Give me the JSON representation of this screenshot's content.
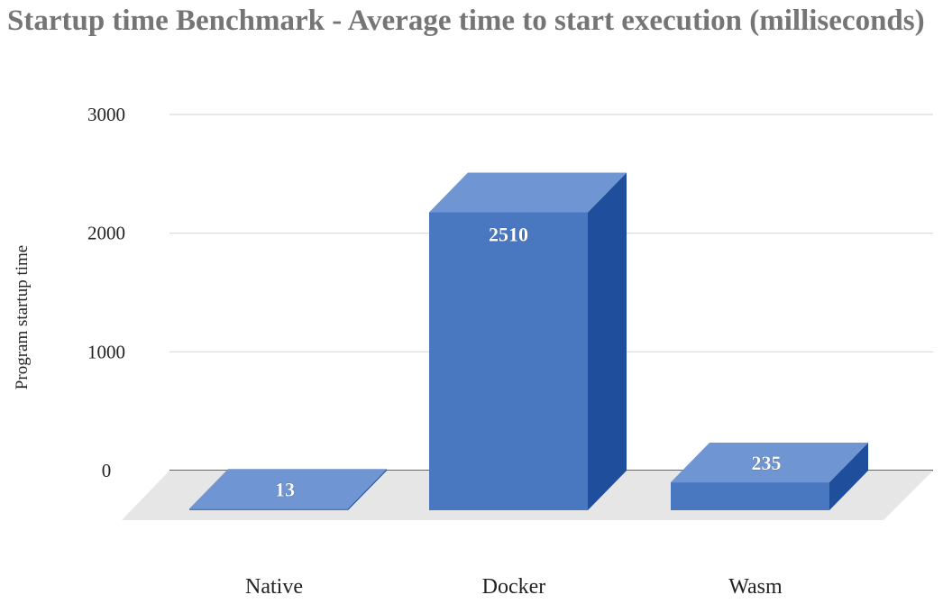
{
  "chart_data": {
    "type": "bar",
    "style": "3d-column",
    "title": "Startup time Benchmark - Average time to start execution (milliseconds)",
    "ylabel": "Program startup time",
    "xlabel": "",
    "categories": [
      "Native",
      "Docker",
      "Wasm"
    ],
    "values": [
      13,
      2510,
      235
    ],
    "data_labels": [
      "13",
      "2510",
      "235"
    ],
    "ylim": [
      0,
      3000
    ],
    "yticks": [
      0,
      1000,
      2000,
      3000
    ],
    "ytick_labels": [
      "0",
      "1000",
      "2000",
      "3000"
    ],
    "grid": true,
    "legend": "none",
    "colors": {
      "front": "#4a78c0",
      "top": "#6f96d2",
      "side": "#1f4f9c",
      "floor": "#e6e6e6",
      "grid": "#d9d9d9",
      "baseline": "#333333"
    }
  }
}
